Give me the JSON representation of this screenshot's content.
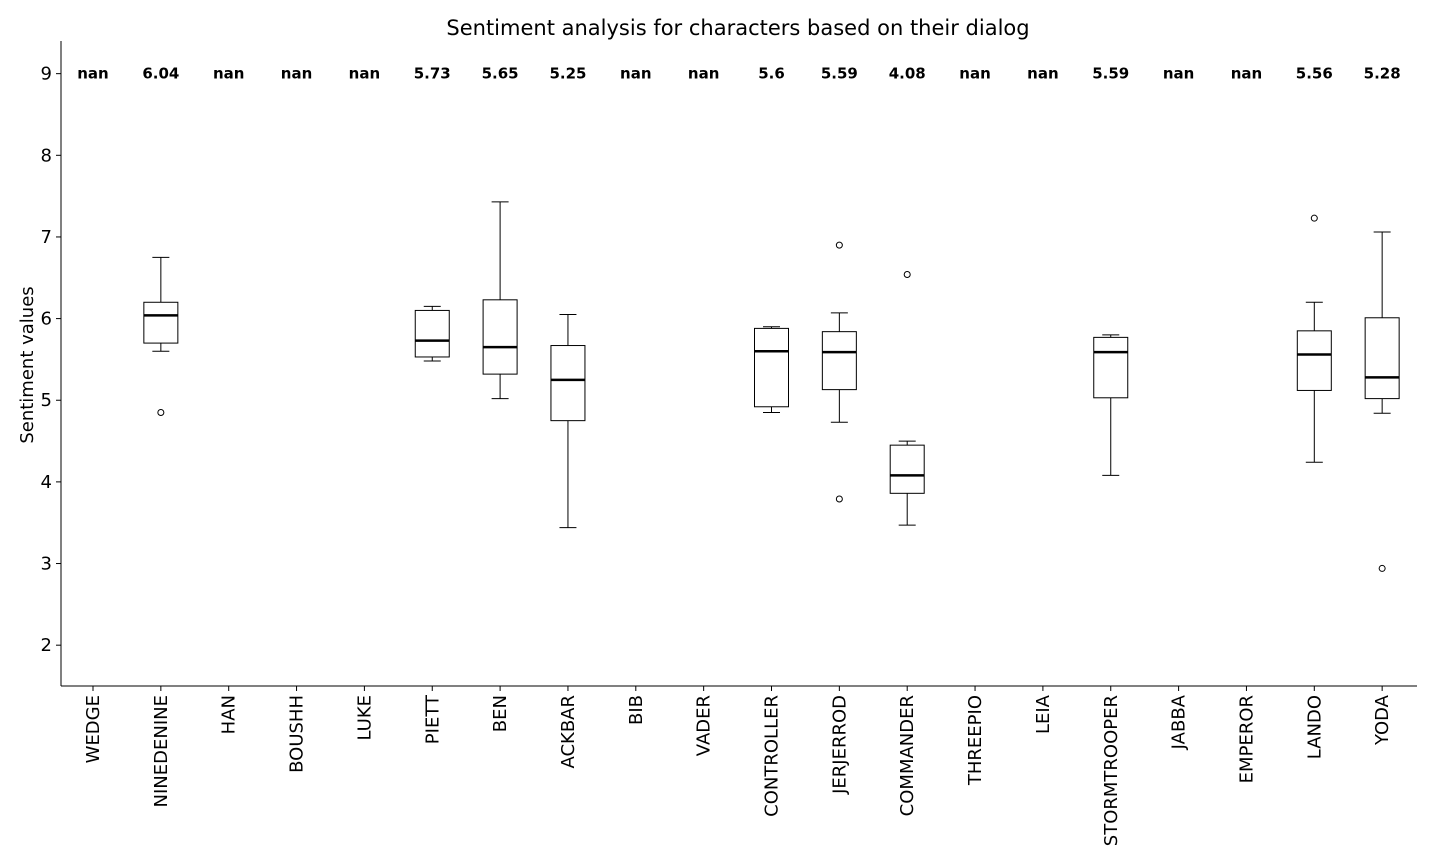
{
  "chart_data": {
    "type": "box",
    "title": "Sentiment analysis for characters based on their dialog",
    "xlabel": "",
    "ylabel": "Sentiment values",
    "ylim": [
      1.5,
      9.4
    ],
    "yticks": [
      2,
      3,
      4,
      5,
      6,
      7,
      8,
      9
    ],
    "grid": false,
    "median_label_y": 9,
    "categories": [
      "WEDGE",
      "NINEDENINE",
      "HAN",
      "BOUSHH",
      "LUKE",
      "PIETT",
      "BEN",
      "ACKBAR",
      "BIB",
      "VADER",
      "CONTROLLER",
      "JERJERROD",
      "COMMANDER",
      "THREEPIO",
      "LEIA",
      "STORMTROOPER",
      "JABBA",
      "EMPEROR",
      "LANDO",
      "YODA"
    ],
    "median_labels": [
      "nan",
      "6.04",
      "nan",
      "nan",
      "nan",
      "5.73",
      "5.65",
      "5.25",
      "nan",
      "nan",
      "5.6",
      "5.59",
      "4.08",
      "nan",
      "nan",
      "5.59",
      "nan",
      "nan",
      "5.56",
      "5.28"
    ],
    "boxes": [
      null,
      {
        "whislo": 5.6,
        "q1": 5.7,
        "med": 6.04,
        "q3": 6.2,
        "whishi": 6.75,
        "fliers": [
          4.85
        ]
      },
      null,
      null,
      null,
      {
        "whislo": 5.48,
        "q1": 5.53,
        "med": 5.73,
        "q3": 6.1,
        "whishi": 6.15,
        "fliers": []
      },
      {
        "whislo": 5.02,
        "q1": 5.32,
        "med": 5.65,
        "q3": 6.23,
        "whishi": 7.43,
        "fliers": []
      },
      {
        "whislo": 3.44,
        "q1": 4.75,
        "med": 5.25,
        "q3": 5.67,
        "whishi": 6.05,
        "fliers": []
      },
      null,
      null,
      {
        "whislo": 4.85,
        "q1": 4.92,
        "med": 5.6,
        "q3": 5.88,
        "whishi": 5.9,
        "fliers": []
      },
      {
        "whislo": 4.73,
        "q1": 5.13,
        "med": 5.59,
        "q3": 5.84,
        "whishi": 6.07,
        "fliers": [
          6.9,
          3.79
        ]
      },
      {
        "whislo": 3.47,
        "q1": 3.86,
        "med": 4.08,
        "q3": 4.45,
        "whishi": 4.5,
        "fliers": [
          6.54
        ]
      },
      null,
      null,
      {
        "whislo": 4.08,
        "q1": 5.03,
        "med": 5.59,
        "q3": 5.77,
        "whishi": 5.8,
        "fliers": []
      },
      null,
      null,
      {
        "whislo": 4.24,
        "q1": 5.12,
        "med": 5.56,
        "q3": 5.85,
        "whishi": 6.2,
        "fliers": [
          7.23
        ]
      },
      {
        "whislo": 4.84,
        "q1": 5.02,
        "med": 5.28,
        "q3": 6.01,
        "whishi": 7.06,
        "fliers": [
          2.94
        ]
      }
    ]
  }
}
